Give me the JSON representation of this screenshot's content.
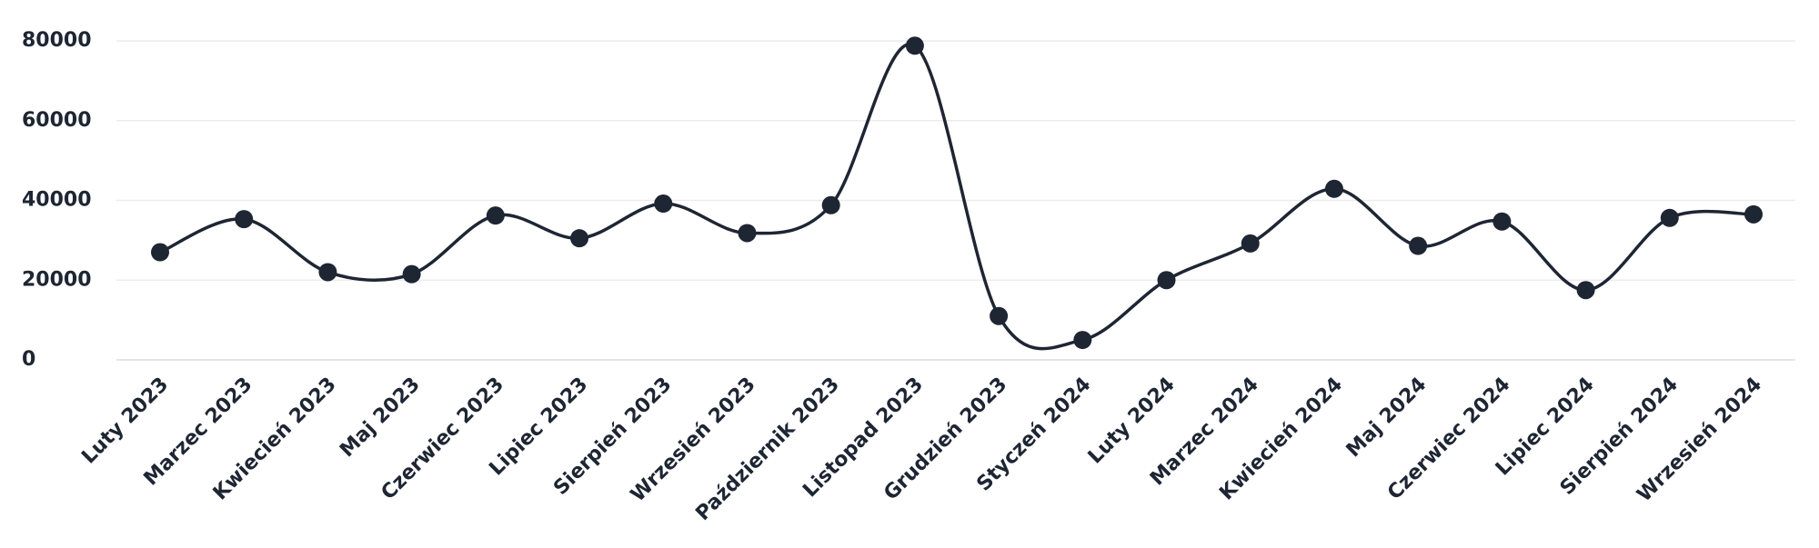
{
  "chart_data": {
    "type": "line",
    "categories": [
      "Luty 2023",
      "Marzec 2023",
      "Kwiecień 2023",
      "Maj 2023",
      "Czerwiec 2023",
      "Lipiec 2023",
      "Sierpień 2023",
      "Wrzesień 2023",
      "Październik 2023",
      "Listopad 2023",
      "Grudzień 2023",
      "Styczeń 2024",
      "Luty 2024",
      "Marzec 2024",
      "Kwiecień 2024",
      "Maj 2024",
      "Czerwiec 2024",
      "Lipiec 2024",
      "Sierpień 2024",
      "Wrzesień 2024"
    ],
    "values": [
      27000,
      35300,
      22000,
      21500,
      36200,
      30500,
      39200,
      31800,
      38800,
      78800,
      11000,
      5000,
      20000,
      29200,
      42900,
      28600,
      34700,
      17500,
      35600,
      36500
    ],
    "color": "#1e2533",
    "ylim": [
      0,
      80000
    ],
    "yticks": [
      0,
      20000,
      40000,
      60000,
      80000
    ],
    "grid": true
  }
}
